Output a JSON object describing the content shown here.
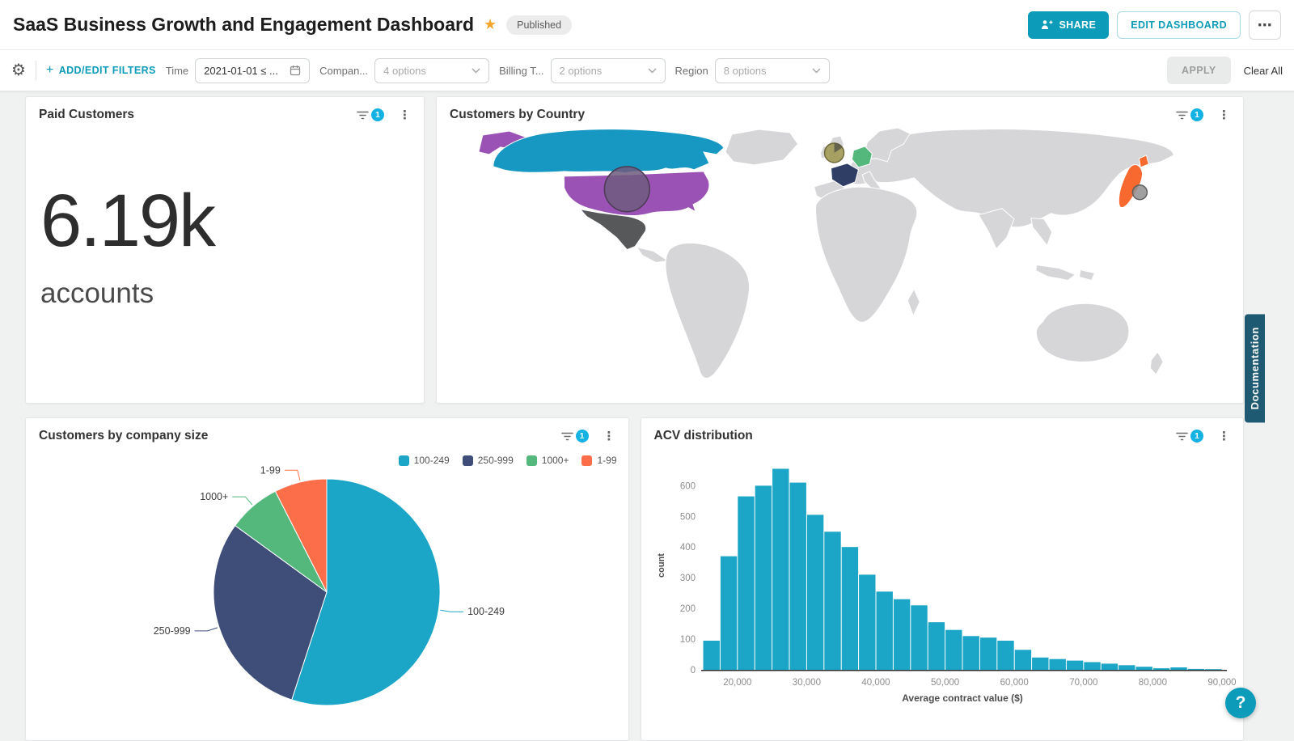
{
  "colors": {
    "accent": "#0c9bb8",
    "badge_cyan": "#14b2e2",
    "star_gold": "#f4a62a",
    "side_tab_bg": "#1f5a73",
    "map_land": "#d6d6d8",
    "map_ocean": "#ffffff",
    "bubble_us": "#6f5a7e",
    "bubble_uk": "#a09a55",
    "bubble_japan": "#8f8f8f"
  },
  "header": {
    "title": "SaaS Business Growth and Engagement Dashboard",
    "star_icon": "★",
    "status_badge": "Published",
    "share_button": "SHARE",
    "edit_button": "EDIT DASHBOARD",
    "more_button": "⋯"
  },
  "filter_bar": {
    "add_edit_filters": "ADD/EDIT FILTERS",
    "time_label": "Time",
    "time_value": "2021-01-01 ≤ ...",
    "company_label": "Compan...",
    "company_value": "4 options",
    "billing_label": "Billing T...",
    "billing_value": "2 options",
    "region_label": "Region",
    "region_value": "8 options",
    "apply_button": "APPLY",
    "clear_all": "Clear All"
  },
  "widgets": {
    "paid_customers": {
      "title": "Paid Customers",
      "filter_count": "1",
      "value": "6.19k",
      "unit": "accounts"
    },
    "customers_by_country": {
      "title": "Customers by Country",
      "filter_count": "1"
    },
    "company_size": {
      "title": "Customers by company size",
      "filter_count": "1"
    },
    "acv": {
      "title": "ACV distribution",
      "filter_count": "1"
    }
  },
  "chart_data": [
    {
      "id": "company_size_pie",
      "type": "pie",
      "title": "Customers by company size",
      "labels": [
        "100-249",
        "250-999",
        "1000+",
        "1-99"
      ],
      "values_pct": [
        55,
        30,
        7.5,
        7.5
      ],
      "colors": [
        "#1ba6c7",
        "#3f4d79",
        "#54b87d",
        "#fb6e49"
      ],
      "legend_position": "top-right"
    },
    {
      "id": "acv_histogram",
      "type": "bar",
      "title": "ACV distribution",
      "xlabel": "Average contract value ($)",
      "ylabel": "count",
      "bar_color": "#1ba6c7",
      "bin_start": 15000,
      "bin_width": 2500,
      "values": [
        95,
        370,
        565,
        600,
        655,
        610,
        505,
        450,
        400,
        310,
        255,
        230,
        210,
        155,
        130,
        110,
        105,
        95,
        65,
        40,
        35,
        30,
        25,
        20,
        15,
        10,
        5,
        8,
        3,
        2
      ],
      "x_ticks": [
        20000,
        30000,
        40000,
        50000,
        60000,
        70000,
        80000,
        90000
      ],
      "y_ticks": [
        0,
        100,
        200,
        300,
        400,
        500,
        600
      ],
      "ylim": [
        0,
        680
      ]
    },
    {
      "id": "country_map",
      "type": "map",
      "title": "Customers by Country",
      "highlighted": [
        {
          "country": "Canada",
          "color": "#1798c2"
        },
        {
          "country": "United States",
          "color": "#9a52b5"
        },
        {
          "country": "Mexico",
          "color": "#57585a"
        },
        {
          "country": "France",
          "color": "#2e3e65"
        },
        {
          "country": "Germany",
          "color": "#54b87d"
        },
        {
          "country": "Japan",
          "color": "#f8692f"
        }
      ]
    }
  ],
  "side_tab": {
    "label": "Documentation"
  },
  "help_button": {
    "label": "?"
  }
}
